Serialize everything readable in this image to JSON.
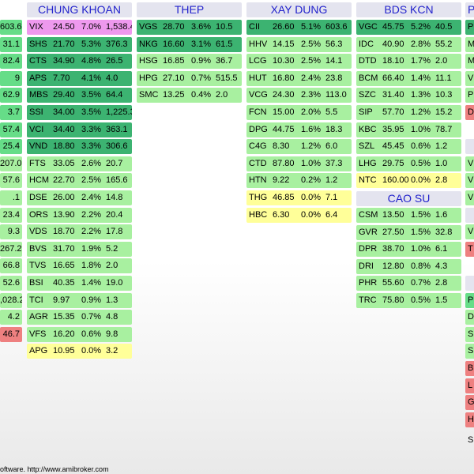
{
  "colors": {
    "header_bg": "#e4e4ef",
    "header_text": "#2222cc",
    "purple": "#ee99ee",
    "dark_green": "#3cb371",
    "mid_green": "#66dd88",
    "light_green": "#a8f0a0",
    "yellow": "#ffff99",
    "red": "#ee8080"
  },
  "left_partial": [
    {
      "text": "603.6",
      "color": "mid"
    },
    {
      "text": "31.1",
      "color": "mid"
    },
    {
      "text": "82.4",
      "color": "mid"
    },
    {
      "text": "9",
      "color": "mid"
    },
    {
      "text": "62.9",
      "color": "mid"
    },
    {
      "text": "3.7",
      "color": "mid"
    },
    {
      "text": "57.4",
      "color": "mid"
    },
    {
      "text": "25.4",
      "color": "mid"
    },
    {
      "text": "207.0",
      "color": "light"
    },
    {
      "text": "57.6",
      "color": "light"
    },
    {
      "text": ".1",
      "color": "light"
    },
    {
      "text": "23.4",
      "color": "light"
    },
    {
      "text": "9.3",
      "color": "light"
    },
    {
      "text": "267.2",
      "color": "light"
    },
    {
      "text": "66.8",
      "color": "light"
    },
    {
      "text": "52.6",
      "color": "light"
    },
    {
      "text": ",028.2",
      "color": "light"
    },
    {
      "text": "4.2",
      "color": "light"
    },
    {
      "text": "46.7",
      "color": "red"
    }
  ],
  "groups": {
    "chung_khoan": {
      "title": "CHUNG KHOAN",
      "rows": [
        {
          "symbol": "VIX",
          "price": "24.50",
          "change": "7.0%",
          "volume": "1,538.4",
          "color": "purple"
        },
        {
          "symbol": "SHS",
          "price": "21.70",
          "change": "5.3%",
          "volume": "376.3",
          "color": "dark"
        },
        {
          "symbol": "CTS",
          "price": "34.90",
          "change": "4.8%",
          "volume": "26.5",
          "color": "dark"
        },
        {
          "symbol": "APS",
          "price": "7.70",
          "change": "4.1%",
          "volume": "4.0",
          "color": "dark"
        },
        {
          "symbol": "MBS",
          "price": "29.40",
          "change": "3.5%",
          "volume": "64.4",
          "color": "dark"
        },
        {
          "symbol": "SSI",
          "price": "34.00",
          "change": "3.5%",
          "volume": "1,225.3",
          "color": "dark"
        },
        {
          "symbol": "VCI",
          "price": "34.40",
          "change": "3.3%",
          "volume": "363.1",
          "color": "dark"
        },
        {
          "symbol": "VND",
          "price": "18.80",
          "change": "3.3%",
          "volume": "306.6",
          "color": "dark"
        },
        {
          "symbol": "FTS",
          "price": "33.05",
          "change": "2.6%",
          "volume": "20.7",
          "color": "light"
        },
        {
          "symbol": "HCM",
          "price": "22.70",
          "change": "2.5%",
          "volume": "165.6",
          "color": "light"
        },
        {
          "symbol": "DSE",
          "price": "26.00",
          "change": "2.4%",
          "volume": "14.8",
          "color": "light"
        },
        {
          "symbol": "ORS",
          "price": "13.90",
          "change": "2.2%",
          "volume": "20.4",
          "color": "light"
        },
        {
          "symbol": "VDS",
          "price": "18.70",
          "change": "2.2%",
          "volume": "17.8",
          "color": "light"
        },
        {
          "symbol": "BVS",
          "price": "31.70",
          "change": "1.9%",
          "volume": "5.2",
          "color": "light"
        },
        {
          "symbol": "TVS",
          "price": "16.65",
          "change": "1.8%",
          "volume": "2.0",
          "color": "light"
        },
        {
          "symbol": "BSI",
          "price": "40.35",
          "change": "1.4%",
          "volume": "19.0",
          "color": "light"
        },
        {
          "symbol": "TCI",
          "price": "9.97",
          "change": "0.9%",
          "volume": "1.3",
          "color": "light"
        },
        {
          "symbol": "AGR",
          "price": "15.35",
          "change": "0.7%",
          "volume": "4.8",
          "color": "light"
        },
        {
          "symbol": "VFS",
          "price": "16.20",
          "change": "0.6%",
          "volume": "9.8",
          "color": "light"
        },
        {
          "symbol": "APG",
          "price": "10.95",
          "change": "0.0%",
          "volume": "3.2",
          "color": "yellow"
        }
      ]
    },
    "thep": {
      "title": "THEP",
      "rows": [
        {
          "symbol": "VGS",
          "price": "28.70",
          "change": "3.6%",
          "volume": "10.5",
          "color": "dark"
        },
        {
          "symbol": "NKG",
          "price": "16.60",
          "change": "3.1%",
          "volume": "61.5",
          "color": "dark"
        },
        {
          "symbol": "HSG",
          "price": "16.85",
          "change": "0.9%",
          "volume": "36.7",
          "color": "light"
        },
        {
          "symbol": "HPG",
          "price": "27.10",
          "change": "0.7%",
          "volume": "515.5",
          "color": "light"
        },
        {
          "symbol": "SMC",
          "price": "13.25",
          "change": "0.4%",
          "volume": "2.0",
          "color": "light"
        }
      ]
    },
    "xay_dung": {
      "title": "XAY DUNG",
      "rows": [
        {
          "symbol": "CII",
          "price": "26.60",
          "change": "5.1%",
          "volume": "603.6",
          "color": "dark"
        },
        {
          "symbol": "HHV",
          "price": "14.15",
          "change": "2.5%",
          "volume": "56.3",
          "color": "light"
        },
        {
          "symbol": "LCG",
          "price": "10.30",
          "change": "2.5%",
          "volume": "14.1",
          "color": "light"
        },
        {
          "symbol": "HUT",
          "price": "16.80",
          "change": "2.4%",
          "volume": "23.8",
          "color": "light"
        },
        {
          "symbol": "VCG",
          "price": "24.30",
          "change": "2.3%",
          "volume": "113.0",
          "color": "light"
        },
        {
          "symbol": "FCN",
          "price": "15.00",
          "change": "2.0%",
          "volume": "5.5",
          "color": "light"
        },
        {
          "symbol": "DPG",
          "price": "44.75",
          "change": "1.6%",
          "volume": "18.3",
          "color": "light"
        },
        {
          "symbol": "C4G",
          "price": "8.30",
          "change": "1.2%",
          "volume": "6.0",
          "color": "light"
        },
        {
          "symbol": "CTD",
          "price": "87.80",
          "change": "1.0%",
          "volume": "37.3",
          "color": "light"
        },
        {
          "symbol": "HTN",
          "price": "9.22",
          "change": "0.2%",
          "volume": "1.2",
          "color": "light"
        },
        {
          "symbol": "THG",
          "price": "46.85",
          "change": "0.0%",
          "volume": "7.1",
          "color": "yellow"
        },
        {
          "symbol": "HBC",
          "price": "6.30",
          "change": "0.0%",
          "volume": "6.4",
          "color": "yellow"
        }
      ]
    },
    "bds_kcn": {
      "title": "BDS KCN",
      "rows": [
        {
          "symbol": "VGC",
          "price": "45.75",
          "change": "5.2%",
          "volume": "40.5",
          "color": "dark"
        },
        {
          "symbol": "IDC",
          "price": "40.90",
          "change": "2.8%",
          "volume": "55.2",
          "color": "light"
        },
        {
          "symbol": "DTD",
          "price": "18.10",
          "change": "1.7%",
          "volume": "2.0",
          "color": "light"
        },
        {
          "symbol": "BCM",
          "price": "66.40",
          "change": "1.4%",
          "volume": "11.1",
          "color": "light"
        },
        {
          "symbol": "SZC",
          "price": "31.40",
          "change": "1.3%",
          "volume": "10.3",
          "color": "light"
        },
        {
          "symbol": "SIP",
          "price": "57.70",
          "change": "1.2%",
          "volume": "15.2",
          "color": "light"
        },
        {
          "symbol": "KBC",
          "price": "35.95",
          "change": "1.0%",
          "volume": "78.7",
          "color": "light"
        },
        {
          "symbol": "SZL",
          "price": "45.45",
          "change": "0.6%",
          "volume": "1.2",
          "color": "light"
        },
        {
          "symbol": "LHG",
          "price": "29.75",
          "change": "0.5%",
          "volume": "1.0",
          "color": "light"
        },
        {
          "symbol": "NTC",
          "price": "160.00",
          "change": "0.0%",
          "volume": "2.8",
          "color": "yellow"
        }
      ]
    },
    "cao_su": {
      "title": "CAO SU",
      "rows": [
        {
          "symbol": "CSM",
          "price": "13.50",
          "change": "1.5%",
          "volume": "1.6",
          "color": "light"
        },
        {
          "symbol": "GVR",
          "price": "27.50",
          "change": "1.5%",
          "volume": "32.8",
          "color": "light"
        },
        {
          "symbol": "DPR",
          "price": "38.70",
          "change": "1.0%",
          "volume": "6.1",
          "color": "light"
        },
        {
          "symbol": "DRI",
          "price": "12.80",
          "change": "0.8%",
          "volume": "4.3",
          "color": "light"
        },
        {
          "symbol": "PHR",
          "price": "55.60",
          "change": "0.7%",
          "volume": "2.8",
          "color": "light"
        },
        {
          "symbol": "TRC",
          "price": "75.80",
          "change": "0.5%",
          "volume": "1.5",
          "color": "light"
        }
      ]
    }
  },
  "right_partial": {
    "header": "P",
    "rows": [
      {
        "text": "P",
        "color": "dark",
        "slot": 0
      },
      {
        "text": "M",
        "color": "light",
        "slot": 1
      },
      {
        "text": "M",
        "color": "light",
        "slot": 2
      },
      {
        "text": "VI",
        "color": "light",
        "slot": 3
      },
      {
        "text": "P",
        "color": "light",
        "slot": 4
      },
      {
        "text": "D",
        "color": "red",
        "slot": 5
      },
      {
        "text": "",
        "color": "gray",
        "slot": 7
      },
      {
        "text": "V",
        "color": "light",
        "slot": 8
      },
      {
        "text": "VI",
        "color": "light",
        "slot": 9
      },
      {
        "text": "V",
        "color": "light",
        "slot": 10
      },
      {
        "text": "",
        "color": "gray",
        "slot": 11
      },
      {
        "text": "V",
        "color": "light",
        "slot": 12
      },
      {
        "text": "T",
        "color": "red",
        "slot": 13
      },
      {
        "text": "",
        "color": "gray",
        "slot": 15
      },
      {
        "text": "P",
        "color": "mid",
        "slot": 16
      },
      {
        "text": "D",
        "color": "light",
        "slot": 17
      },
      {
        "text": "S",
        "color": "light",
        "slot": 18
      },
      {
        "text": "S",
        "color": "light",
        "slot": 19
      },
      {
        "text": "B",
        "color": "red",
        "slot": 20
      },
      {
        "text": "L",
        "color": "red",
        "slot": 21
      },
      {
        "text": "G",
        "color": "red",
        "slot": 22
      },
      {
        "text": "H",
        "color": "red",
        "slot": 23
      }
    ],
    "stray": "S"
  },
  "footer": "oftware. http://www.amibroker.com"
}
